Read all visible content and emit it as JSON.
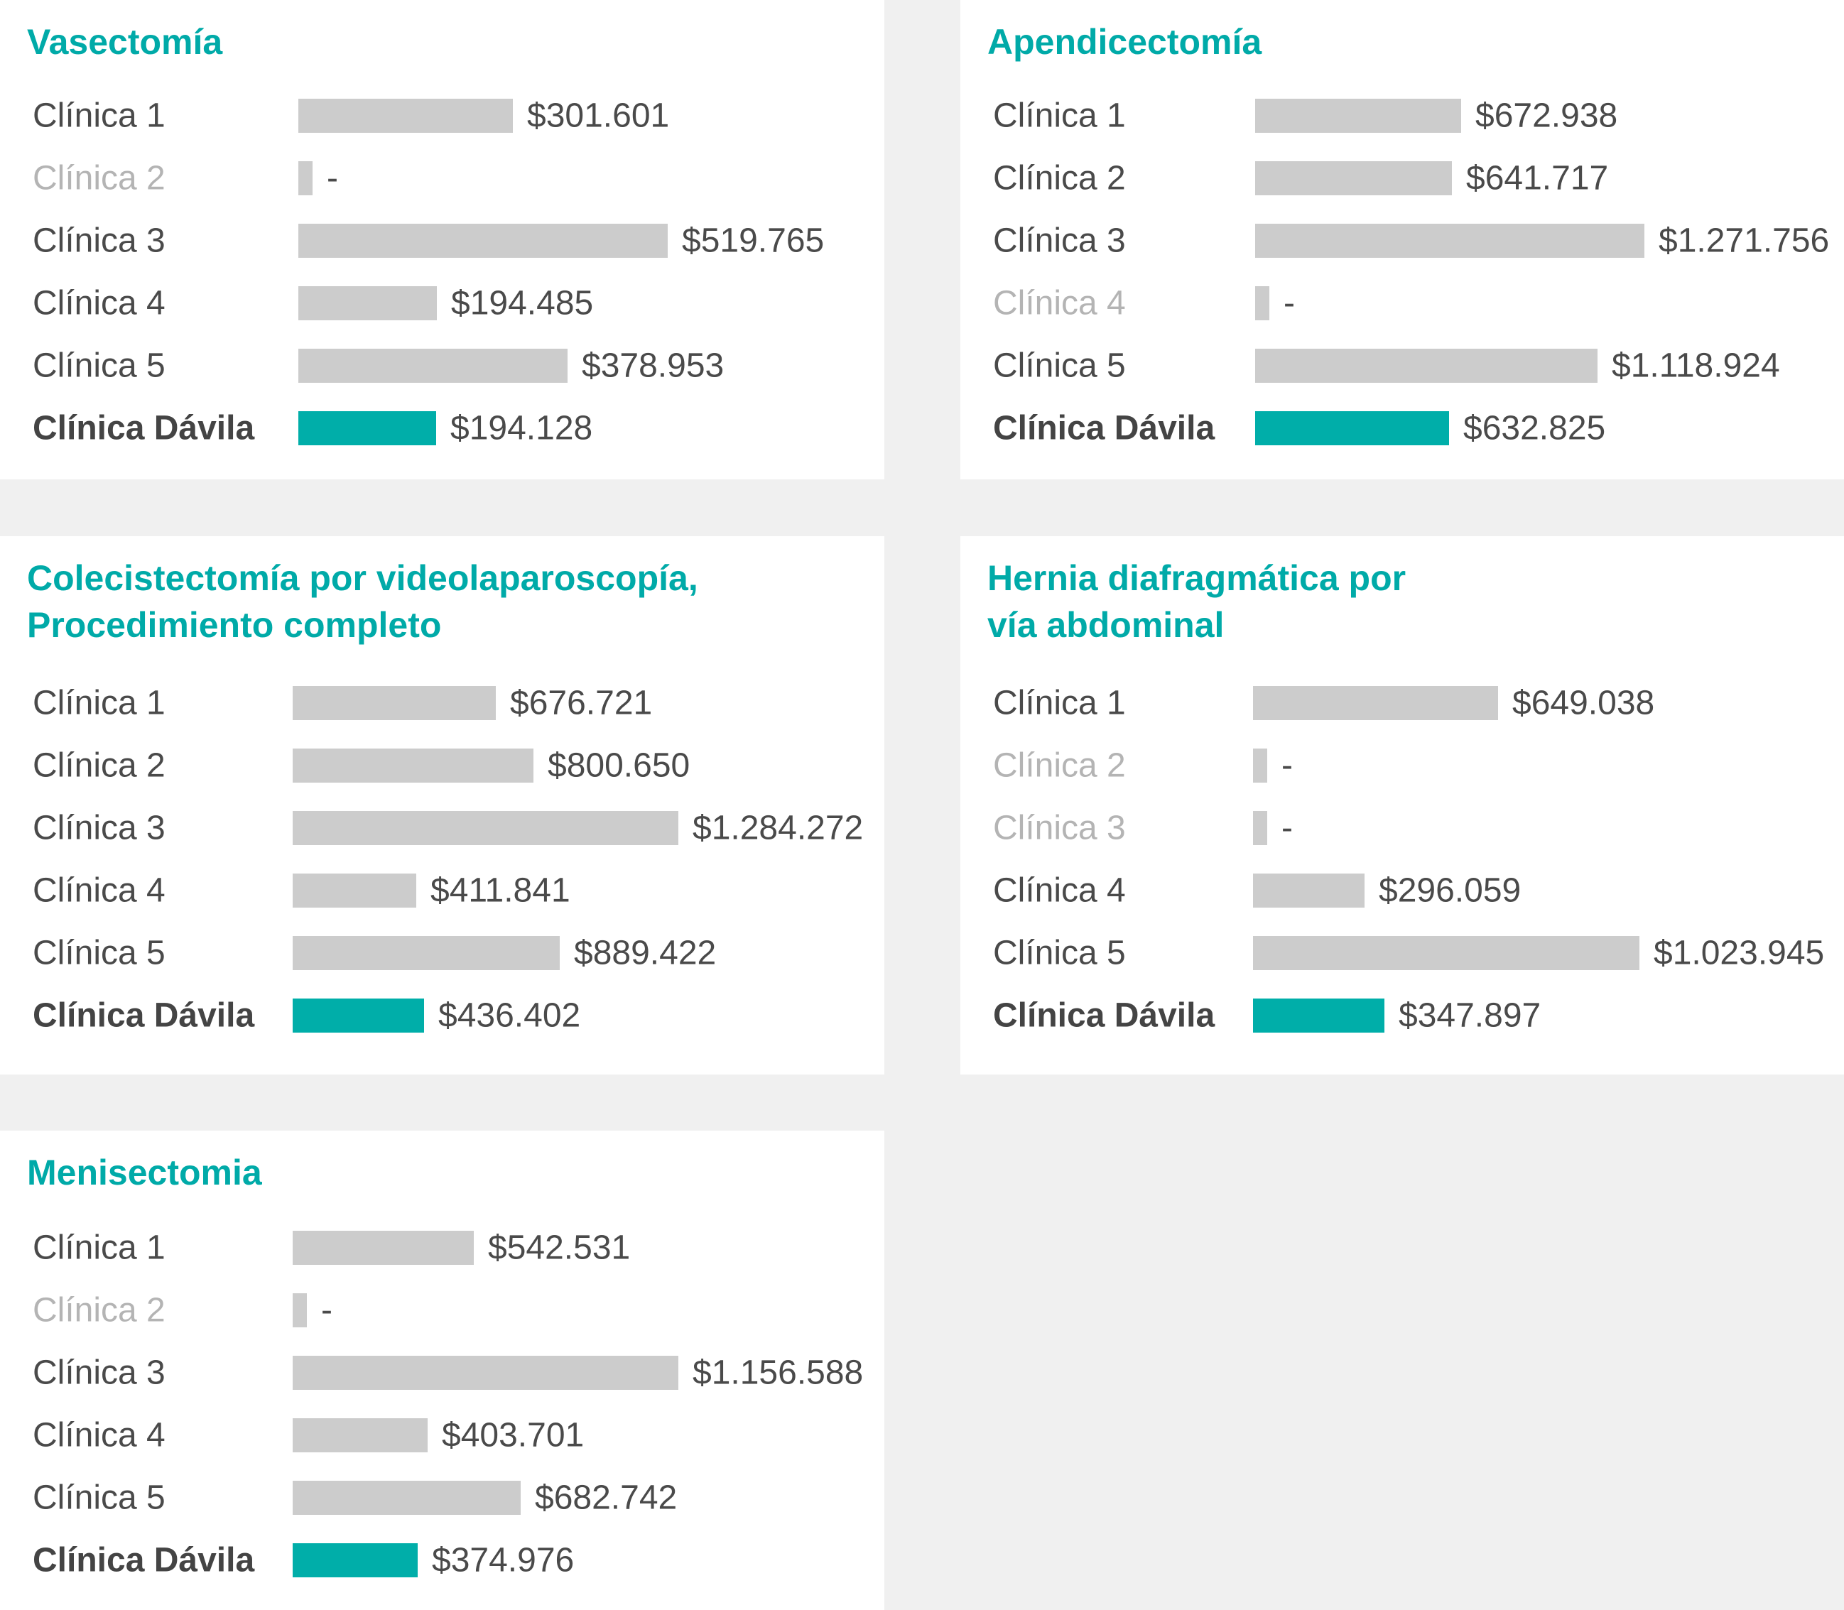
{
  "chart_data": [
    {
      "type": "bar",
      "orientation": "horizontal",
      "title": "Vasectomía",
      "categories": [
        "Clínica 1",
        "Clínica 2",
        "Clínica 3",
        "Clínica 4",
        "Clínica 5",
        "Clínica Dávila"
      ],
      "values": [
        301601,
        null,
        519765,
        194485,
        378953,
        194128
      ],
      "value_labels": [
        "$301.601",
        "-",
        "$519.765",
        "$194.485",
        "$378.953",
        "$194.128"
      ],
      "highlight": "Clínica Dávila",
      "xlim": [
        0,
        519765
      ]
    },
    {
      "type": "bar",
      "orientation": "horizontal",
      "title": "Apendicectomía",
      "categories": [
        "Clínica 1",
        "Clínica 2",
        "Clínica 3",
        "Clínica 4",
        "Clínica 5",
        "Clínica Dávila"
      ],
      "values": [
        672938,
        641717,
        1271756,
        null,
        1118924,
        632825
      ],
      "value_labels": [
        "$672.938",
        "$641.717",
        "$1.271.756",
        "-",
        "$1.118.924",
        "$632.825"
      ],
      "highlight": "Clínica Dávila",
      "xlim": [
        0,
        1271756
      ]
    },
    {
      "type": "bar",
      "orientation": "horizontal",
      "title": "Colecistectomía por videolaparoscopía,\nProcedimiento completo",
      "categories": [
        "Clínica 1",
        "Clínica 2",
        "Clínica 3",
        "Clínica 4",
        "Clínica 5",
        "Clínica Dávila"
      ],
      "values": [
        676721,
        800650,
        1284272,
        411841,
        889422,
        436402
      ],
      "value_labels": [
        "$676.721",
        "$800.650",
        "$1.284.272",
        "$411.841",
        "$889.422",
        "$436.402"
      ],
      "highlight": "Clínica Dávila",
      "xlim": [
        0,
        1284272
      ]
    },
    {
      "type": "bar",
      "orientation": "horizontal",
      "title": "Hernia diafragmática por\nvía abdominal",
      "categories": [
        "Clínica 1",
        "Clínica 2",
        "Clínica 3",
        "Clínica 4",
        "Clínica 5",
        "Clínica Dávila"
      ],
      "values": [
        649038,
        null,
        null,
        296059,
        1023945,
        347897
      ],
      "value_labels": [
        "$649.038",
        "-",
        "-",
        "$296.059",
        "$1.023.945",
        "$347.897"
      ],
      "highlight": "Clínica Dávila",
      "xlim": [
        0,
        1023945
      ]
    },
    {
      "type": "bar",
      "orientation": "horizontal",
      "title": "Menisectomia",
      "categories": [
        "Clínica 1",
        "Clínica 2",
        "Clínica 3",
        "Clínica 4",
        "Clínica 5",
        "Clínica Dávila"
      ],
      "values": [
        542531,
        null,
        1156588,
        403701,
        682742,
        374976
      ],
      "value_labels": [
        "$542.531",
        "-",
        "$1.156.588",
        "$403.701",
        "$682.742",
        "$374.976"
      ],
      "highlight": "Clínica Dávila",
      "xlim": [
        0,
        1156588
      ]
    }
  ],
  "colors": {
    "title": "#00aaa8",
    "bar": "#cccccc",
    "highlight_bar": "#00aea9",
    "text": "#4a4a4a",
    "muted_text": "#b4b4b4",
    "background": "#f0f0f0",
    "panel": "#ffffff"
  }
}
